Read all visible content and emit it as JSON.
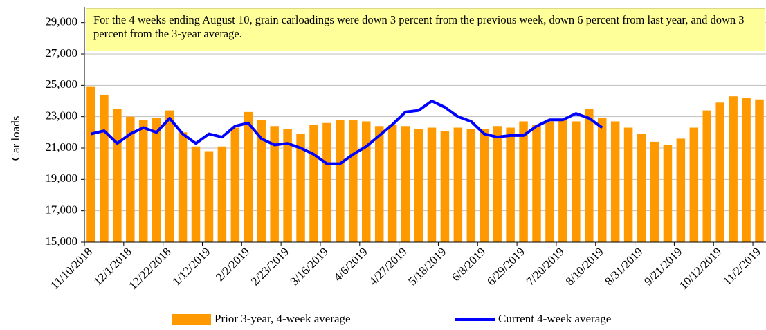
{
  "chart_data": {
    "type": "bar_line",
    "annotation": "For the 4 weeks ending August 10, grain carloadings were down 3 percent from the previous week, down 6 percent from last year, and down 3 percent from the 3-year average.",
    "y_label": "Car loads",
    "categories": [
      "11/10/2018",
      null,
      null,
      "12/1/2018",
      null,
      null,
      "12/22/2018",
      null,
      null,
      "1/12/2019",
      null,
      null,
      "2/2/2019",
      null,
      null,
      "2/23/2019",
      null,
      null,
      "3/16/2019",
      null,
      null,
      "4/6/2019",
      null,
      null,
      "4/27/2019",
      null,
      null,
      "5/18/2019",
      null,
      null,
      "6/8/2019",
      null,
      null,
      "6/29/2019",
      null,
      null,
      "7/20/2019",
      null,
      null,
      "8/10/2019",
      null,
      null,
      "8/31/2019",
      null,
      null,
      "9/21/2019",
      null,
      null,
      "10/12/2019",
      null,
      null,
      "11/2/2019"
    ],
    "series": [
      {
        "name": "Prior 3-year, 4-week average",
        "type": "bar",
        "color": "#ff9900",
        "values": [
          24900,
          24400,
          23500,
          23000,
          22800,
          22900,
          23400,
          22000,
          21100,
          20800,
          21100,
          22300,
          23300,
          22800,
          22400,
          22200,
          21900,
          22500,
          22600,
          22800,
          22800,
          22700,
          22400,
          22500,
          22400,
          22200,
          22300,
          22100,
          22300,
          22200,
          22200,
          22400,
          22300,
          22700,
          22500,
          22700,
          22800,
          22700,
          23500,
          22900,
          22700,
          22300,
          21900,
          21400,
          21200,
          21600,
          22300,
          23400,
          23900,
          24300,
          24200,
          24100
        ]
      },
      {
        "name": "Current 4-week average",
        "type": "line",
        "color": "#0000ff",
        "values": [
          21900,
          22100,
          21300,
          21900,
          22300,
          22000,
          22900,
          21900,
          21300,
          21900,
          21700,
          22400,
          22600,
          21600,
          21200,
          21300,
          21000,
          20600,
          20000,
          20000,
          20600,
          21100,
          21800,
          22500,
          23300,
          23400,
          24000,
          23600,
          23000,
          22700,
          21900,
          21700,
          21800,
          21800,
          22400,
          22800,
          22800,
          23200,
          22900,
          22300,
          null,
          null,
          null,
          null,
          null,
          null,
          null,
          null,
          null,
          null,
          null,
          null
        ]
      }
    ],
    "ylim": [
      15000,
      30000
    ],
    "yticks": [
      {
        "value": 15000,
        "label": "15,000"
      },
      {
        "value": 17000,
        "label": "17,000"
      },
      {
        "value": 19000,
        "label": "19,000"
      },
      {
        "value": 21000,
        "label": "21,000"
      },
      {
        "value": 23000,
        "label": "23,000"
      },
      {
        "value": 25000,
        "label": "25,000"
      },
      {
        "value": 27000,
        "label": "27,000"
      },
      {
        "value": 29000,
        "label": "29,000"
      }
    ],
    "grid": true
  }
}
